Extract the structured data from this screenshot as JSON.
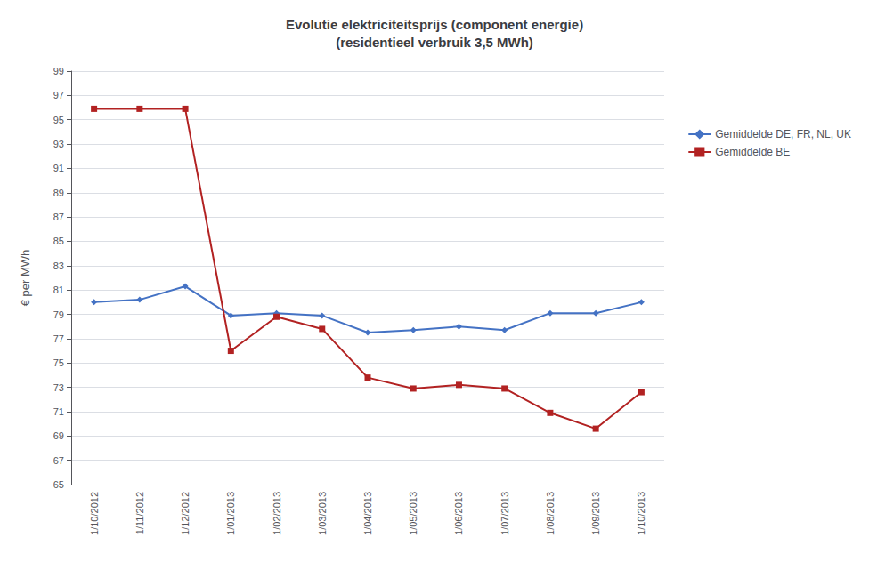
{
  "chart_data": {
    "type": "line",
    "title": "Evolutie elektriciteitsprijs (component energie)\n(residentieel verbruik 3,5 MWh)",
    "ylabel": "€ per MWh",
    "categories": [
      "1/10/2012",
      "1/11/2012",
      "1/12/2012",
      "1/01/2013",
      "1/02/2013",
      "1/03/2013",
      "1/04/2013",
      "1/05/2013",
      "1/06/2013",
      "1/07/2013",
      "1/08/2013",
      "1/09/2013",
      "1/10/2013"
    ],
    "series": [
      {
        "name": "Gemiddelde DE, FR, NL, UK",
        "color": "#4472c4",
        "marker": "diamond",
        "values": [
          80.0,
          80.2,
          81.3,
          78.9,
          79.1,
          78.9,
          77.5,
          77.7,
          78.0,
          77.7,
          79.1,
          79.1,
          80.0
        ]
      },
      {
        "name": "Gemiddelde BE",
        "color": "#b22222",
        "marker": "square",
        "values": [
          95.9,
          95.9,
          95.9,
          76.0,
          78.8,
          77.8,
          73.8,
          72.9,
          73.2,
          72.9,
          70.9,
          69.6,
          72.6
        ]
      }
    ],
    "ylim": [
      65,
      99
    ],
    "yticks": [
      65,
      67,
      69,
      71,
      73,
      75,
      77,
      79,
      81,
      83,
      85,
      87,
      89,
      91,
      93,
      95,
      97,
      99
    ],
    "grid": true,
    "legend": "right"
  }
}
